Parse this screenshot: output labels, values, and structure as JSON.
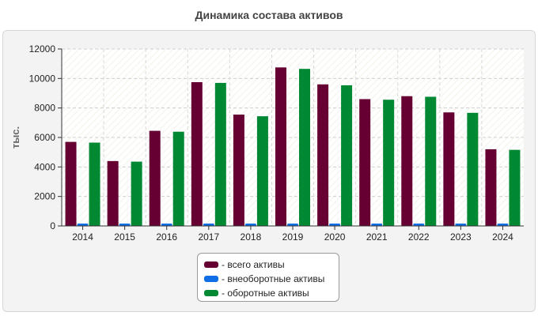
{
  "chart_data": {
    "type": "bar",
    "title": "Динамика состава активов",
    "ylabel": "тыс.",
    "xlabel": "",
    "ylim": [
      0,
      12000
    ],
    "yticks": [
      0,
      2000,
      4000,
      6000,
      8000,
      10000,
      12000
    ],
    "categories": [
      "2014",
      "2015",
      "2016",
      "2017",
      "2018",
      "2019",
      "2020",
      "2021",
      "2022",
      "2023",
      "2024"
    ],
    "series": [
      {
        "name": "всего активы",
        "color": "#660033",
        "values": [
          5700,
          4400,
          6450,
          9750,
          7550,
          10750,
          9600,
          8600,
          8800,
          7700,
          5200
        ]
      },
      {
        "name": "внеоборотные активы",
        "color": "#0f6de6",
        "values": [
          50,
          40,
          60,
          50,
          110,
          100,
          60,
          40,
          40,
          30,
          40
        ]
      },
      {
        "name": "оборотные активы",
        "color": "#008833",
        "values": [
          5650,
          4360,
          6390,
          9700,
          7440,
          10650,
          9540,
          8560,
          8760,
          7670,
          5160
        ]
      }
    ],
    "grid": true,
    "legend": "bottom-center"
  },
  "legend": {
    "items": [
      {
        "label": "- всего активы",
        "color": "#660033"
      },
      {
        "label": "- внеоборотные активы",
        "color": "#0f6de6"
      },
      {
        "label": "- оборотные активы",
        "color": "#008833"
      }
    ]
  }
}
